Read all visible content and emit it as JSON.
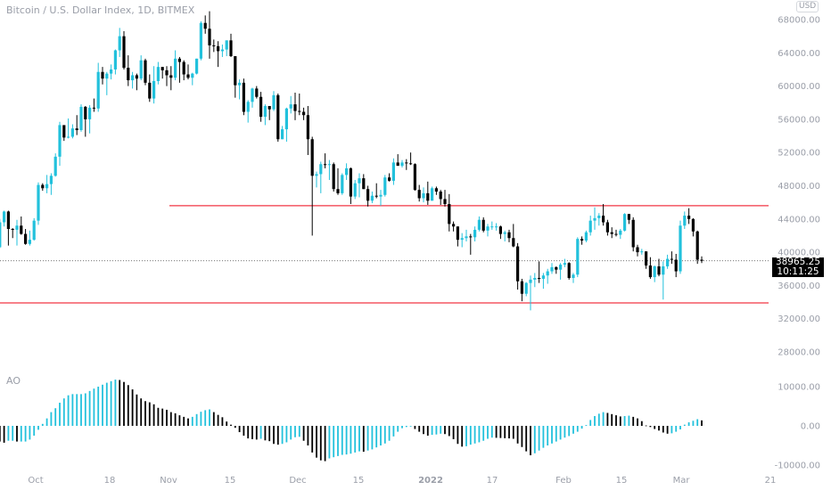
{
  "header": {
    "title": "Bitcoin / U.S. Dollar Index, 1D, BITMEX",
    "currency": "USD"
  },
  "indicator": {
    "label": "AO"
  },
  "last_price": {
    "value": 38965.25,
    "label": "38965.25",
    "countdown": "10:11:25"
  },
  "colors": {
    "up": "#22c1dc",
    "down": "#000000",
    "level_line": "#f23645",
    "axis_text": "#9a9ea8"
  },
  "chart_data": [
    {
      "type": "candlestick",
      "title": "Bitcoin / U.S. Dollar Index, 1D, BITMEX",
      "ylim": [
        26000,
        69500
      ],
      "y_ticks": [
        "68000.00",
        "64000.00",
        "60000.00",
        "56000.00",
        "52000.00",
        "48000.00",
        "44000.00",
        "40000.00",
        "36000.00",
        "32000.00",
        "28000.00"
      ],
      "x_ticks": [
        "Oct",
        "18",
        "Nov",
        "15",
        "Dec",
        "15",
        "2022",
        "17",
        "Feb",
        "15",
        "Mar",
        "21"
      ],
      "grid": false,
      "horizontal_levels": [
        45600,
        33900
      ],
      "candles_ohlc": [
        [
          43000,
          43600,
          39600,
          40600
        ],
        [
          40600,
          44000,
          40500,
          43600
        ],
        [
          43600,
          45000,
          43100,
          44900
        ],
        [
          44900,
          45000,
          40800,
          42800
        ],
        [
          42800,
          42900,
          41700,
          42700
        ],
        [
          42700,
          43900,
          40800,
          43200
        ],
        [
          43200,
          44300,
          42100,
          42200
        ],
        [
          42200,
          42800,
          40900,
          41000
        ],
        [
          41000,
          42600,
          40800,
          41500
        ],
        [
          41500,
          44100,
          41400,
          43800
        ],
        [
          43800,
          48400,
          43300,
          48100
        ],
        [
          48100,
          48300,
          47400,
          47700
        ],
        [
          47700,
          49300,
          47100,
          48200
        ],
        [
          48200,
          49500,
          46900,
          49200
        ],
        [
          49200,
          51900,
          49100,
          51500
        ],
        [
          51500,
          55700,
          50400,
          55300
        ],
        [
          55300,
          55300,
          53400,
          53800
        ],
        [
          53800,
          56100,
          53700,
          53900
        ],
        [
          53900,
          55400,
          53700,
          54900
        ],
        [
          54900,
          56500,
          54100,
          54700
        ],
        [
          54700,
          57800,
          54500,
          57500
        ],
        [
          57500,
          57600,
          53900,
          56000
        ],
        [
          56000,
          57700,
          54300,
          57400
        ],
        [
          57400,
          58500,
          56900,
          57300
        ],
        [
          57300,
          62800,
          56900,
          61700
        ],
        [
          61700,
          62300,
          60200,
          60900
        ],
        [
          60900,
          61700,
          58900,
          61500
        ],
        [
          61500,
          62600,
          60800,
          62000
        ],
        [
          62000,
          64400,
          61400,
          64300
        ],
        [
          64300,
          67000,
          63500,
          66000
        ],
        [
          66000,
          66600,
          62000,
          62200
        ],
        [
          62200,
          63700,
          60000,
          60700
        ],
        [
          60700,
          61700,
          59700,
          61300
        ],
        [
          61300,
          61500,
          59500,
          60900
        ],
        [
          60900,
          63700,
          60700,
          63100
        ],
        [
          63100,
          63300,
          60100,
          60400
        ],
        [
          60400,
          61400,
          58100,
          58500
        ],
        [
          58500,
          62400,
          57900,
          60600
        ],
        [
          60600,
          62900,
          60200,
          62300
        ],
        [
          62300,
          62300,
          60900,
          61900
        ],
        [
          61900,
          62400,
          60000,
          61300
        ],
        [
          61300,
          62400,
          59500,
          61000
        ],
        [
          61000,
          64300,
          60700,
          63300
        ],
        [
          63300,
          63500,
          60400,
          62900
        ],
        [
          62900,
          63100,
          60700,
          61400
        ],
        [
          61400,
          62600,
          60800,
          61000
        ],
        [
          61000,
          61600,
          60100,
          61500
        ],
        [
          61500,
          63300,
          61400,
          63300
        ],
        [
          63300,
          67800,
          63100,
          67600
        ],
        [
          67600,
          68500,
          66300,
          66900
        ],
        [
          66900,
          69000,
          63300,
          64900
        ],
        [
          64900,
          65600,
          64100,
          64800
        ],
        [
          64800,
          65400,
          62300,
          64200
        ],
        [
          64200,
          65000,
          63500,
          64400
        ],
        [
          64400,
          65500,
          63600,
          65500
        ],
        [
          65500,
          66300,
          63500,
          63600
        ],
        [
          63600,
          63600,
          58600,
          60100
        ],
        [
          60100,
          60800,
          58400,
          60400
        ],
        [
          60400,
          60900,
          56500,
          56900
        ],
        [
          56900,
          58300,
          55600,
          58100
        ],
        [
          58100,
          59800,
          57400,
          59700
        ],
        [
          59700,
          60000,
          58500,
          58700
        ],
        [
          58700,
          59300,
          55700,
          56300
        ],
        [
          56300,
          57800,
          55300,
          57600
        ],
        [
          57600,
          57600,
          55900,
          57200
        ],
        [
          57200,
          59400,
          57000,
          58900
        ],
        [
          58900,
          59100,
          53300,
          53600
        ],
        [
          53600,
          55200,
          53600,
          54800
        ],
        [
          54800,
          57400,
          53300,
          57300
        ],
        [
          57300,
          58800,
          56700,
          57800
        ],
        [
          57800,
          59200,
          55900,
          57000
        ],
        [
          57000,
          59100,
          56500,
          56900
        ],
        [
          56900,
          57400,
          55900,
          56500
        ],
        [
          56500,
          57600,
          51700,
          53600
        ],
        [
          53600,
          53900,
          42000,
          49200
        ],
        [
          49200,
          49700,
          47800,
          49400
        ],
        [
          49400,
          50900,
          47100,
          50600
        ],
        [
          50600,
          51900,
          50100,
          50500
        ],
        [
          50500,
          51100,
          48700,
          50600
        ],
        [
          50600,
          50800,
          47300,
          47600
        ],
        [
          47600,
          50100,
          46900,
          47100
        ],
        [
          47100,
          49500,
          46900,
          49300
        ],
        [
          49300,
          50700,
          48700,
          50100
        ],
        [
          50100,
          50200,
          45800,
          46700
        ],
        [
          46700,
          48700,
          46400,
          48300
        ],
        [
          48300,
          49500,
          46600,
          48900
        ],
        [
          48900,
          49400,
          47600,
          47600
        ],
        [
          47600,
          48000,
          45500,
          46200
        ],
        [
          46200,
          47300,
          45900,
          46800
        ],
        [
          46800,
          48300,
          46500,
          46700
        ],
        [
          46700,
          47500,
          45600,
          46900
        ],
        [
          46900,
          49300,
          46700,
          49000
        ],
        [
          49000,
          49500,
          48500,
          48600
        ],
        [
          48600,
          51300,
          48100,
          50800
        ],
        [
          50800,
          51800,
          50400,
          50400
        ],
        [
          50400,
          51100,
          50200,
          50800
        ],
        [
          50800,
          51200,
          49900,
          50700
        ],
        [
          50700,
          52000,
          50500,
          50600
        ],
        [
          50600,
          50700,
          47400,
          47500
        ],
        [
          47500,
          48100,
          46100,
          46500
        ],
        [
          46500,
          47800,
          46000,
          47100
        ],
        [
          47100,
          48500,
          45700,
          46200
        ],
        [
          46200,
          47900,
          46200,
          47700
        ],
        [
          47700,
          47900,
          46900,
          47300
        ],
        [
          47300,
          47500,
          45700,
          46400
        ],
        [
          46400,
          47500,
          45500,
          45800
        ],
        [
          45800,
          47000,
          42500,
          43400
        ],
        [
          43400,
          43700,
          42500,
          43100
        ],
        [
          43100,
          43100,
          40700,
          41500
        ],
        [
          41500,
          42300,
          40600,
          41700
        ],
        [
          41700,
          42700,
          41300,
          41900
        ],
        [
          41900,
          42200,
          39700,
          41800
        ],
        [
          41800,
          43100,
          41300,
          42700
        ],
        [
          42700,
          44300,
          42500,
          43900
        ],
        [
          43900,
          44200,
          42400,
          42600
        ],
        [
          42600,
          43400,
          41900,
          43100
        ],
        [
          43100,
          43700,
          42700,
          43100
        ],
        [
          43100,
          43500,
          42600,
          43100
        ],
        [
          43100,
          43200,
          41600,
          42200
        ],
        [
          42200,
          42600,
          41300,
          42400
        ],
        [
          42400,
          42700,
          41200,
          41700
        ],
        [
          41700,
          43400,
          40600,
          40700
        ],
        [
          40700,
          41100,
          35500,
          36500
        ],
        [
          36500,
          36800,
          34100,
          35000
        ],
        [
          35000,
          36400,
          34700,
          36300
        ],
        [
          36300,
          37200,
          33000,
          36700
        ],
        [
          36700,
          37500,
          35800,
          36900
        ],
        [
          36900,
          38900,
          36300,
          36800
        ],
        [
          36800,
          37500,
          35600,
          37200
        ],
        [
          37200,
          38000,
          36200,
          37700
        ],
        [
          37700,
          38700,
          37400,
          38200
        ],
        [
          38200,
          38300,
          37400,
          37900
        ],
        [
          37900,
          38700,
          36700,
          38500
        ],
        [
          38500,
          39200,
          38200,
          38700
        ],
        [
          38700,
          38800,
          36700,
          36900
        ],
        [
          36900,
          37500,
          36300,
          37300
        ],
        [
          37300,
          41800,
          37000,
          41600
        ],
        [
          41600,
          41900,
          40900,
          41400
        ],
        [
          41400,
          42600,
          41200,
          42400
        ],
        [
          42400,
          44400,
          42000,
          43800
        ],
        [
          43800,
          45400,
          42700,
          44100
        ],
        [
          44100,
          44700,
          43200,
          44400
        ],
        [
          44400,
          45800,
          43200,
          43600
        ],
        [
          43600,
          43900,
          42000,
          42400
        ],
        [
          42400,
          43000,
          41700,
          42200
        ],
        [
          42200,
          42700,
          41900,
          42100
        ],
        [
          42100,
          42800,
          41600,
          42600
        ],
        [
          42600,
          44700,
          42500,
          44600
        ],
        [
          44600,
          44600,
          43400,
          43900
        ],
        [
          43900,
          44200,
          40100,
          40600
        ],
        [
          40600,
          40900,
          39500,
          40000
        ],
        [
          40000,
          40400,
          39700,
          40100
        ],
        [
          40100,
          40100,
          38000,
          38400
        ],
        [
          38400,
          39400,
          36800,
          37000
        ],
        [
          37000,
          38400,
          36400,
          38300
        ],
        [
          38300,
          39200,
          37100,
          37300
        ],
        [
          37300,
          38900,
          34300,
          38300
        ],
        [
          38300,
          39700,
          38000,
          39200
        ],
        [
          39200,
          40100,
          38600,
          39100
        ],
        [
          39100,
          39800,
          37000,
          37700
        ],
        [
          37700,
          43800,
          37400,
          43200
        ],
        [
          43200,
          44900,
          42800,
          44400
        ],
        [
          44400,
          45300,
          43400,
          44000
        ],
        [
          44000,
          44100,
          41900,
          42500
        ],
        [
          42500,
          42600,
          38600,
          39100
        ],
        [
          39100,
          39500,
          38700,
          38965.25
        ]
      ]
    },
    {
      "type": "histogram",
      "title": "AO",
      "ylim": [
        -11500,
        12500
      ],
      "y_ticks": [
        "10000.00",
        "0.00",
        "-10000.00"
      ],
      "values": [
        -3000,
        -4000,
        -4300,
        -3800,
        -3800,
        -4000,
        -4000,
        -4000,
        -3500,
        -2500,
        -1000,
        500,
        1900,
        3500,
        4500,
        5900,
        7000,
        7800,
        8100,
        8100,
        8100,
        8300,
        8900,
        9500,
        10000,
        10500,
        11000,
        11400,
        11800,
        11700,
        11200,
        10400,
        9300,
        8000,
        7000,
        6300,
        6000,
        5500,
        4600,
        4400,
        4100,
        3500,
        3200,
        2700,
        2300,
        1900,
        2300,
        3000,
        3600,
        4000,
        4200,
        3500,
        2800,
        2200,
        1100,
        300,
        -500,
        -1600,
        -2500,
        -3200,
        -3400,
        -3500,
        -3300,
        -3700,
        -3900,
        -4600,
        -4800,
        -4600,
        -4200,
        -3500,
        -2900,
        -2800,
        -3800,
        -5000,
        -6800,
        -8100,
        -8800,
        -9000,
        -8300,
        -8000,
        -7700,
        -7400,
        -7300,
        -7100,
        -6800,
        -6500,
        -6600,
        -6300,
        -6000,
        -5500,
        -5000,
        -4500,
        -3800,
        -2700,
        -1500,
        -600,
        -300,
        -100,
        -800,
        -1500,
        -2100,
        -2500,
        -2300,
        -2200,
        -2000,
        -2100,
        -2600,
        -3400,
        -4600,
        -5300,
        -5200,
        -4800,
        -4500,
        -4200,
        -3800,
        -3300,
        -3000,
        -3050,
        -3100,
        -3150,
        -3200,
        -3300,
        -4500,
        -5400,
        -6500,
        -7500,
        -7000,
        -6300,
        -5600,
        -5000,
        -4500,
        -4000,
        -3500,
        -3000,
        -2600,
        -2000,
        -1500,
        -700,
        200,
        1500,
        2500,
        3100,
        3500,
        3300,
        3000,
        2700,
        2400,
        2500,
        2600,
        2300,
        1900,
        1200,
        100,
        -300,
        -800,
        -1200,
        -1700,
        -2000,
        -1900,
        -1500,
        -900,
        300,
        900,
        1300,
        1700,
        1400
      ]
    }
  ]
}
